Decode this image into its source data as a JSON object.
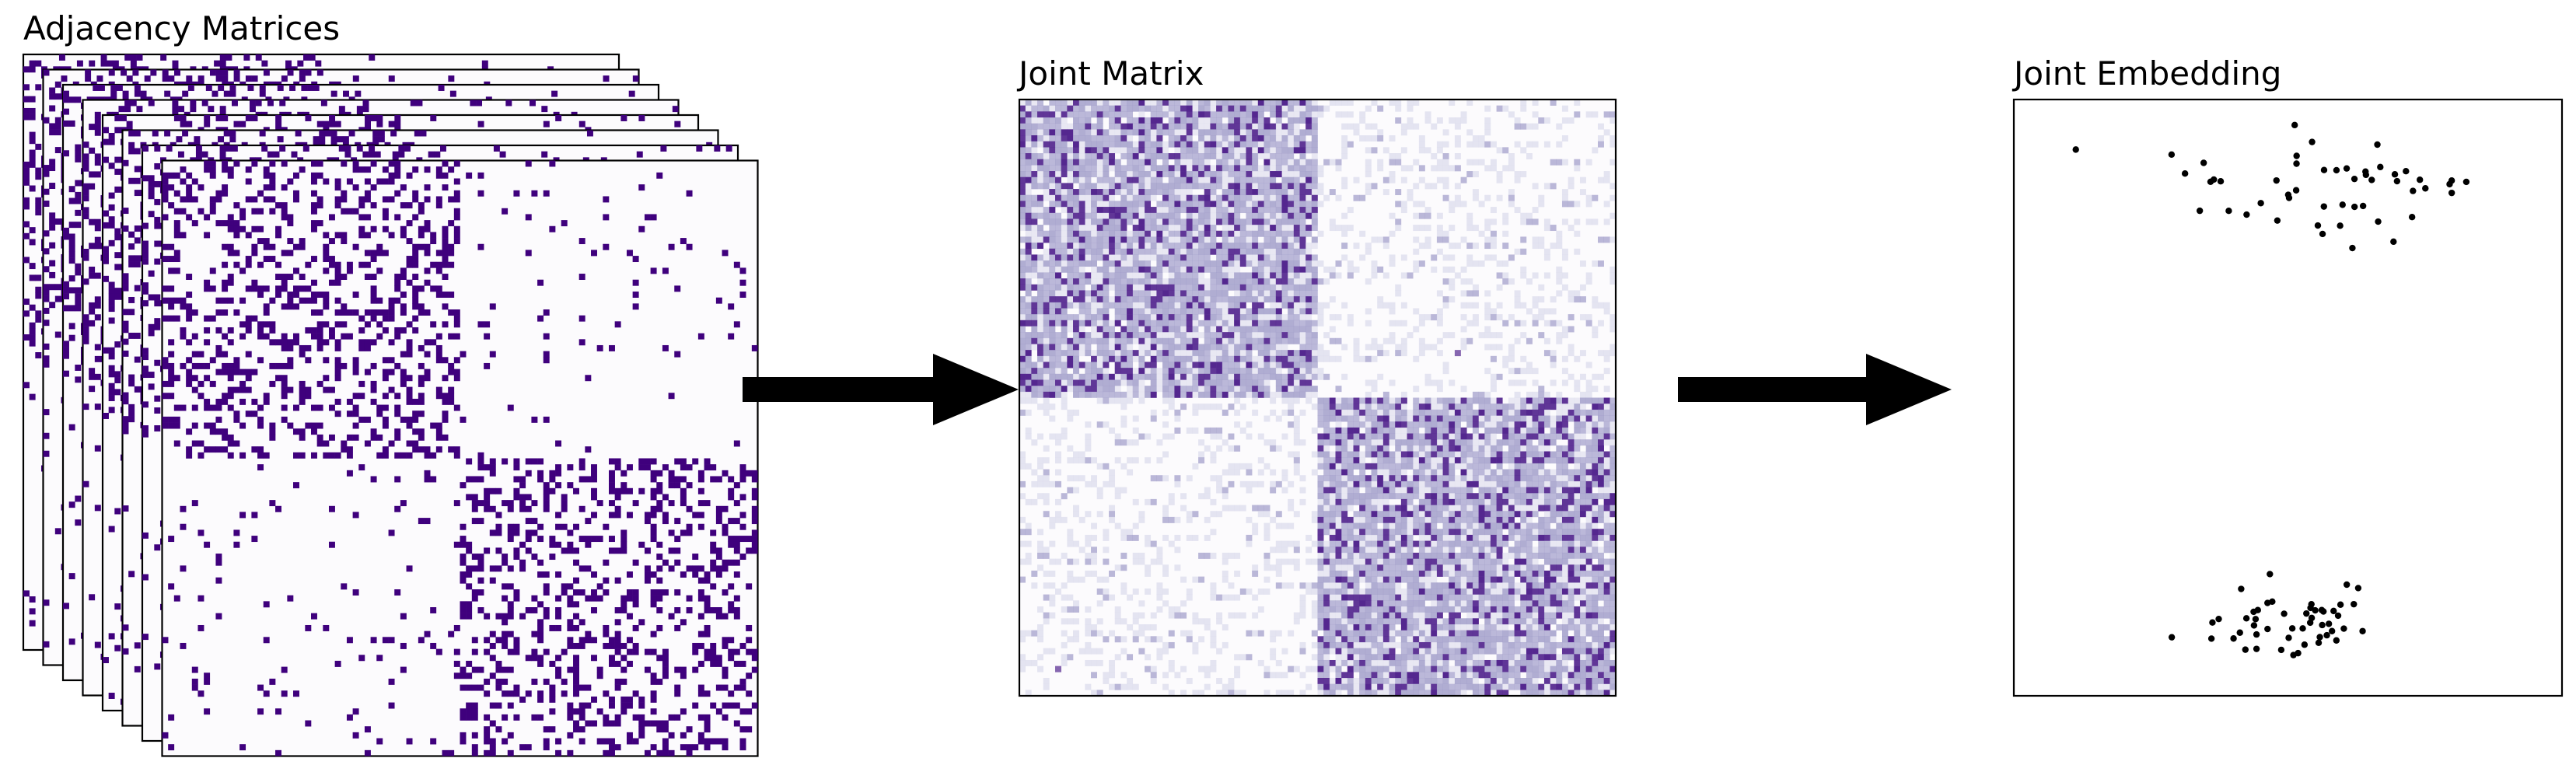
{
  "figure": {
    "titles": {
      "adjacency": "Adjacency Matrices",
      "joint_matrix": "Joint Matrix",
      "joint_embedding": "Joint Embedding"
    },
    "colors": {
      "edge": "#3f007d",
      "background": "#fcfbfd",
      "heatmap_light": "#dadaeb",
      "heatmap_mid": "#9e9ac8",
      "heatmap_dark": "#54278f",
      "arrow": "#000000",
      "point": "#000000"
    },
    "adjacency_stack": {
      "layers": 8,
      "blocks": 2,
      "within_block_density": "high",
      "between_block_density": "low"
    },
    "joint_matrix": {
      "blocks": 2,
      "pattern": "two diagonal dense blocks, sparse off-diagonal"
    },
    "embedding": {
      "clusters": 2,
      "points_per_cluster": 50,
      "axes_ticks": "none"
    },
    "arrows": 2
  }
}
